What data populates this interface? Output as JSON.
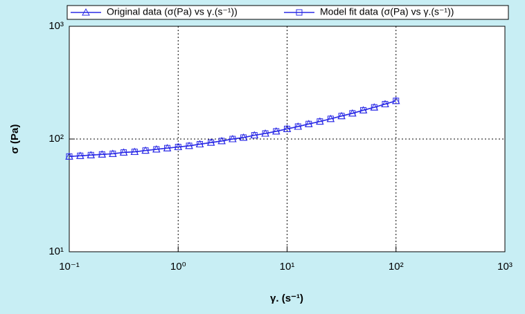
{
  "chart_data": {
    "type": "line",
    "xlabel": "γ. (s⁻¹)",
    "ylabel": "σ (Pa)",
    "x": [
      0.1,
      0.126,
      0.158,
      0.2,
      0.251,
      0.316,
      0.398,
      0.501,
      0.631,
      0.794,
      1,
      1.26,
      1.58,
      2,
      2.51,
      3.16,
      3.98,
      5.01,
      6.31,
      7.94,
      10,
      12.6,
      15.8,
      20,
      25.1,
      31.6,
      39.8,
      50.1,
      63.1,
      79.4,
      100
    ],
    "series": [
      {
        "name": "Original data (σ(Pa) vs γ.(s⁻¹))",
        "color": "#2a2ae6",
        "marker": "triangle",
        "values": [
          70,
          71,
          72,
          73,
          74,
          76,
          77,
          79,
          81,
          83,
          85,
          87,
          90,
          93,
          96,
          100,
          103,
          108,
          112,
          117,
          123,
          129,
          136,
          143,
          151,
          160,
          169,
          180,
          191,
          204,
          218
        ]
      },
      {
        "name": "Model fit data (σ(Pa) vs γ.(s⁻¹))",
        "color": "#2a2ae6",
        "marker": "square",
        "values": [
          70,
          71,
          72,
          73,
          74,
          76,
          77,
          79,
          81,
          83,
          85,
          87,
          90,
          93,
          96,
          100,
          103,
          108,
          112,
          117,
          123,
          129,
          136,
          143,
          151,
          160,
          169,
          180,
          191,
          204,
          218
        ]
      }
    ],
    "xscale": "log",
    "yscale": "log",
    "xlim": [
      0.1,
      1000
    ],
    "ylim": [
      10,
      1000
    ],
    "xticks": [
      {
        "value": 0.1,
        "label": "10⁻¹"
      },
      {
        "value": 1,
        "label": "10⁰"
      },
      {
        "value": 10,
        "label": "10¹"
      },
      {
        "value": 100,
        "label": "10²"
      },
      {
        "value": 1000,
        "label": "10³"
      }
    ],
    "yticks": [
      {
        "value": 10,
        "label": "10¹"
      },
      {
        "value": 100,
        "label": "10²"
      },
      {
        "value": 1000,
        "label": "10³"
      }
    ],
    "grid": true,
    "legend": "top"
  }
}
